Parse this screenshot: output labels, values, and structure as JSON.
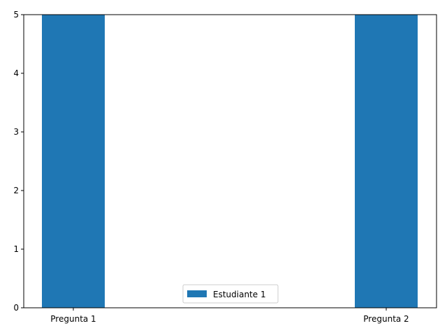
{
  "chart_data": {
    "type": "bar",
    "categories": [
      "Pregunta 1",
      "Pregunta 2"
    ],
    "series": [
      {
        "name": "Estudiante 1",
        "values": [
          5,
          5
        ],
        "color": "#1f77b4"
      }
    ],
    "yticks": [
      "0",
      "1",
      "2",
      "3",
      "4",
      "5"
    ],
    "ylim": [
      0,
      5
    ],
    "grid": false,
    "legend_position": "lower-center"
  }
}
